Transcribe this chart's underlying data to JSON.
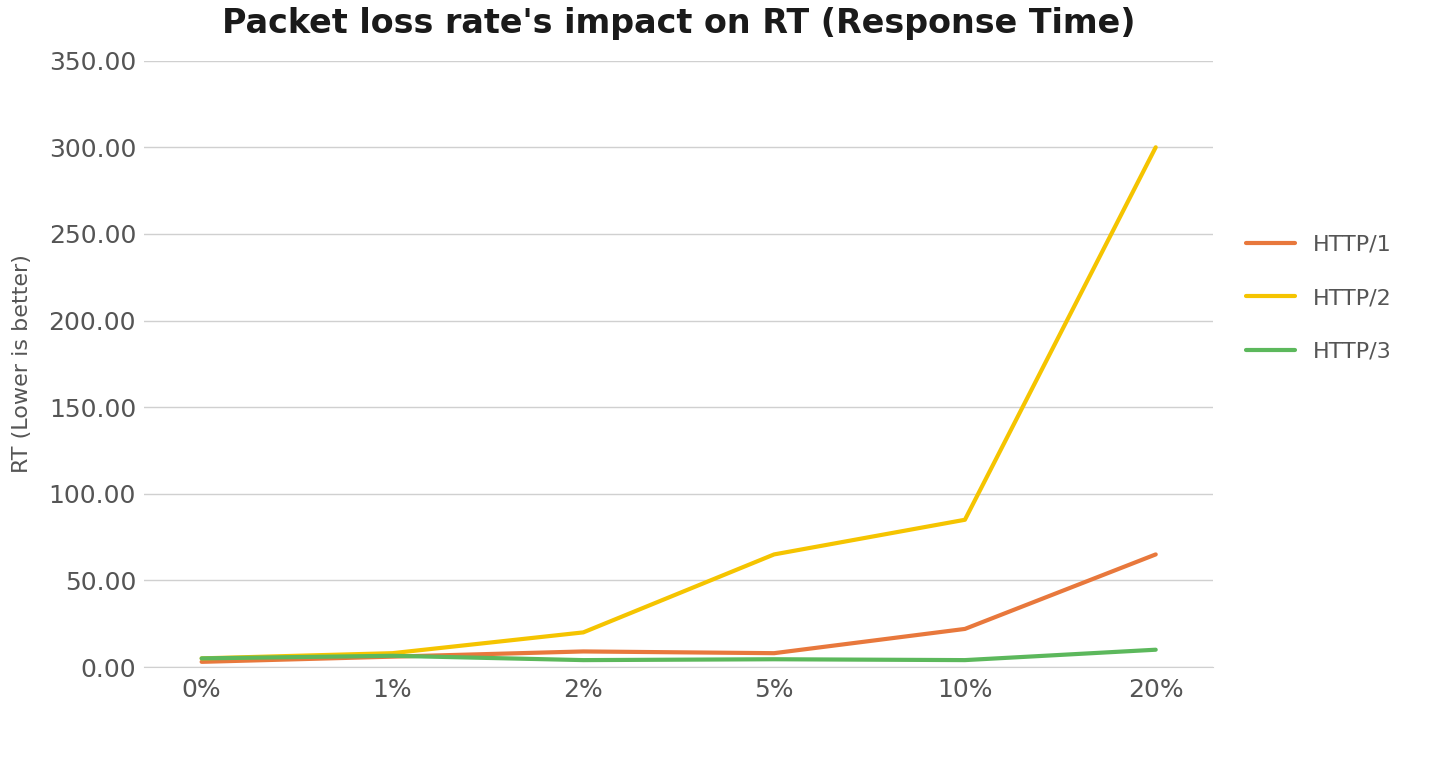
{
  "title": "Packet loss rate's impact on RT (Response Time)",
  "ylabel": "RT (Lower is better)",
  "x_labels": [
    "0%",
    "1%",
    "2%",
    "5%",
    "10%",
    "20%"
  ],
  "x_positions": [
    0,
    1,
    2,
    3,
    4,
    5
  ],
  "series": [
    {
      "name": "HTTP/1",
      "color": "#E8783C",
      "values": [
        3.0,
        6.0,
        9.0,
        8.0,
        22.0,
        65.0
      ]
    },
    {
      "name": "HTTP/2",
      "color": "#F5C400",
      "values": [
        5.0,
        8.0,
        20.0,
        65.0,
        85.0,
        300.0
      ]
    },
    {
      "name": "HTTP/3",
      "color": "#5CB85C",
      "values": [
        5.0,
        6.5,
        4.0,
        4.5,
        4.0,
        10.0
      ]
    }
  ],
  "ylim": [
    0,
    350
  ],
  "yticks": [
    0.0,
    50.0,
    100.0,
    150.0,
    200.0,
    250.0,
    300.0,
    350.0
  ],
  "ytick_labels": [
    "0.00",
    "50.00",
    "100.00",
    "150.00",
    "200.00",
    "250.00",
    "300.00",
    "350.00"
  ],
  "background_color": "#ffffff",
  "grid_color": "#d0d0d0",
  "title_fontsize": 24,
  "axis_label_fontsize": 16,
  "tick_fontsize": 18,
  "legend_fontsize": 16,
  "line_width": 3.0
}
